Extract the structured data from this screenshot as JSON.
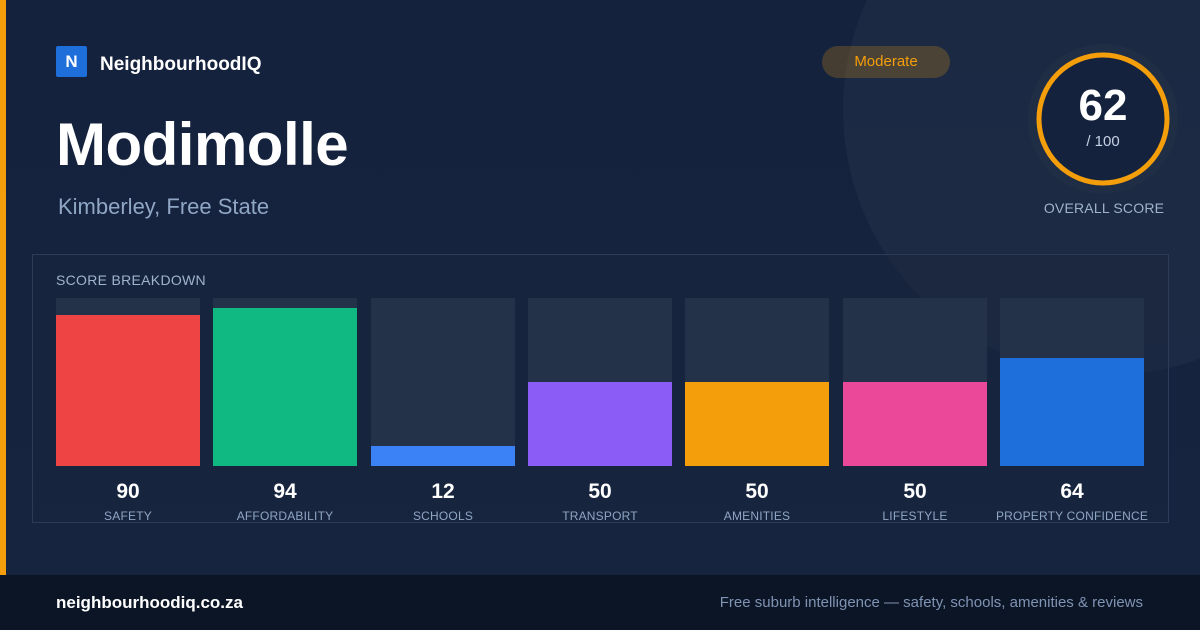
{
  "brand": {
    "logo_letter": "N",
    "name": "NeighbourhoodIQ"
  },
  "suburb": {
    "name": "Modimolle",
    "location": "Kimberley, Free State"
  },
  "rating_badge": {
    "label": "Moderate",
    "color": "#f59e0b"
  },
  "overall": {
    "score": "62",
    "max_label": "/ 100",
    "score_fraction": 0.62,
    "label": "OVERALL SCORE",
    "ring_color": "#f59e0b"
  },
  "breakdown": {
    "title": "SCORE BREAKDOWN",
    "items": [
      {
        "label": "SAFETY",
        "value": 90,
        "color": "#ef4444"
      },
      {
        "label": "AFFORDABILITY",
        "value": 94,
        "color": "#10b981"
      },
      {
        "label": "SCHOOLS",
        "value": 12,
        "color": "#3b82f6"
      },
      {
        "label": "TRANSPORT",
        "value": 50,
        "color": "#8b5cf6"
      },
      {
        "label": "AMENITIES",
        "value": 50,
        "color": "#f59e0b"
      },
      {
        "label": "LIFESTYLE",
        "value": 50,
        "color": "#ec4899"
      },
      {
        "label": "PROPERTY CONFIDENCE",
        "value": 64,
        "color": "#1e6fdc"
      }
    ]
  },
  "footer": {
    "url": "neighbourhoodiq.co.za",
    "tagline": "Free suburb intelligence — safety, schools, amenities & reviews"
  }
}
